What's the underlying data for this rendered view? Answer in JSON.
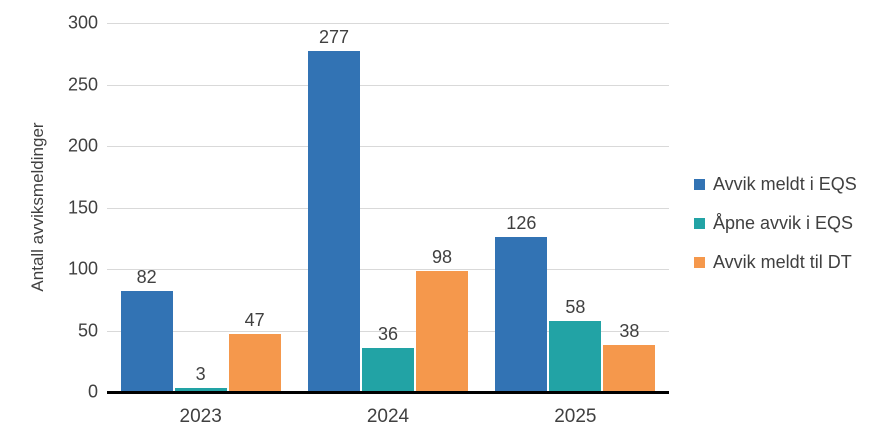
{
  "chart_data": {
    "type": "bar",
    "categories": [
      "2023",
      "2024",
      "2025"
    ],
    "series": [
      {
        "name": "Avvik meldt i EQS",
        "color": "#3273b4",
        "values": [
          82,
          277,
          126
        ]
      },
      {
        "name": "Åpne avvik i EQS",
        "color": "#22a3a5",
        "values": [
          3,
          36,
          58
        ]
      },
      {
        "name": "Avvik meldt til DT",
        "color": "#f5984c",
        "values": [
          47,
          98,
          38
        ]
      }
    ],
    "title": "",
    "xlabel": "",
    "ylabel": "Antall avviksmeldinger",
    "ylim": [
      0,
      300
    ],
    "yticks": [
      0,
      50,
      100,
      150,
      200,
      250,
      300
    ],
    "grid": true,
    "legend_position": "right",
    "data_labels": true
  },
  "colors": {
    "background": "#ffffff",
    "gridline": "#d9d9d9",
    "axis": "#000000",
    "text": "#404040"
  }
}
